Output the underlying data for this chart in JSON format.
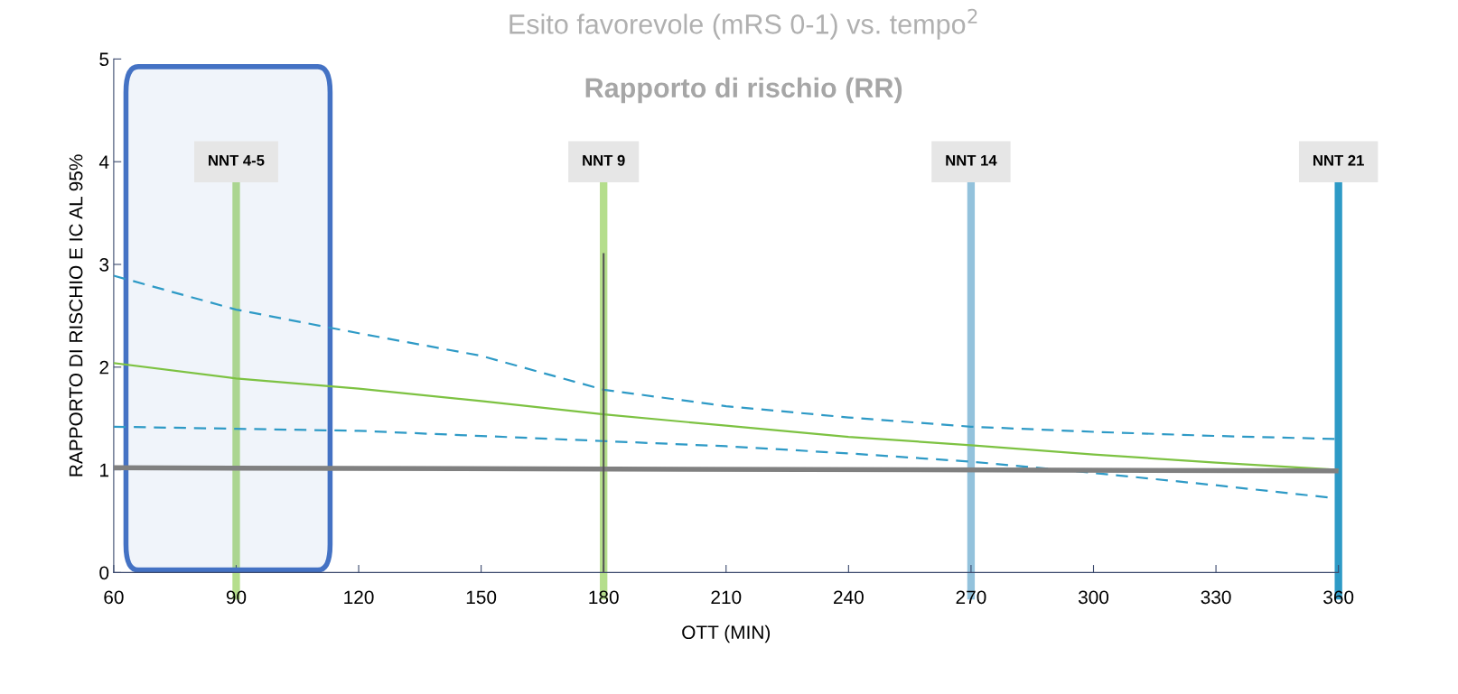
{
  "chart_data": {
    "type": "line",
    "title": "Esito favorevole (mRS 0-1) vs. tempo$^{2}$",
    "subtitle": "Rapporto di rischio (RR)",
    "xlabel": "OTT (MIN)",
    "ylabel": "RAPPORTO DI RISCHIO E IC AL 95%",
    "x": [
      60,
      90,
      120,
      150,
      180,
      210,
      240,
      270,
      300,
      330,
      360
    ],
    "series": [
      {
        "color": "#2e9ac6",
        "line_style": "dashed",
        "values": [
          2.89,
          2.56,
          2.33,
          2.11,
          1.78,
          1.62,
          1.51,
          1.42,
          1.37,
          1.33,
          1.3
        ]
      },
      {
        "color": "#2e9ac6",
        "line_style": "dashed",
        "values": [
          1.42,
          1.4,
          1.38,
          1.33,
          1.28,
          1.23,
          1.16,
          1.08,
          0.97,
          0.85,
          0.72
        ]
      },
      {
        "color": "#7dc242",
        "line_style": "solid",
        "values": [
          2.04,
          1.89,
          1.79,
          1.67,
          1.54,
          1.43,
          1.32,
          1.24,
          1.15,
          1.07,
          1.0
        ]
      },
      {
        "color": "#808080",
        "line_style": "solid",
        "x": [
          60,
          360
        ],
        "values": [
          1.02,
          0.99
        ]
      },
      {
        "color": "#555555",
        "line_style": "solid",
        "x": [
          180,
          180
        ],
        "values": [
          0,
          3.1
        ]
      }
    ],
    "ref_lines": [
      {
        "axis": "x",
        "value": 90,
        "label": "NNT 4-5",
        "color": "#b5de8c"
      },
      {
        "axis": "x",
        "value": 180,
        "label": "NNT 9",
        "color": "#b5de8c"
      },
      {
        "axis": "x",
        "value": 270,
        "label": "NNT 14",
        "color": "#93c2dc"
      },
      {
        "axis": "x",
        "value": 360,
        "label": "NNT 21",
        "color": "#2e9ac6"
      }
    ],
    "bands": [
      {
        "axis": "x",
        "from": 63,
        "to": 113,
        "color": "#4472c4"
      }
    ],
    "xlim": [
      60,
      360
    ],
    "xticks": [
      60,
      90,
      120,
      150,
      180,
      210,
      240,
      270,
      300,
      330,
      360
    ],
    "ylim": [
      0,
      5
    ],
    "yticks": [
      0,
      1,
      2,
      3,
      4,
      5
    ],
    "grid": false,
    "marker": "none"
  }
}
